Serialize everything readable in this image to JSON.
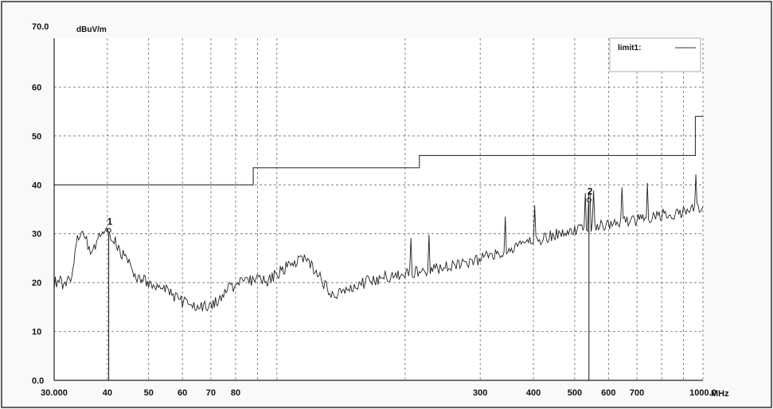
{
  "chart_data": {
    "type": "line",
    "title": "",
    "ylabel": "dBuV/m",
    "xlabel": "MHz",
    "x_scale": "log",
    "xlim": [
      30,
      1000
    ],
    "ylim": [
      0,
      70
    ],
    "y_tick_labels": [
      "0.0",
      "10",
      "20",
      "30",
      "40",
      "50",
      "60",
      "70.0"
    ],
    "y_tick_values": [
      0,
      10,
      20,
      30,
      40,
      50,
      60,
      70
    ],
    "x_tick_labels": [
      "30.000",
      "40",
      "50",
      "60",
      "70",
      "80",
      "300",
      "400",
      "500",
      "600",
      "700",
      "1000.0"
    ],
    "x_tick_values": [
      30,
      40,
      50,
      60,
      70,
      80,
      300,
      400,
      500,
      600,
      700,
      1000
    ],
    "x_grid_values": [
      30,
      40,
      50,
      60,
      70,
      80,
      90,
      100,
      200,
      300,
      400,
      500,
      600,
      700,
      800,
      900,
      1000
    ],
    "y_grid_values": [
      10,
      20,
      30,
      40,
      50,
      60
    ],
    "grid": true,
    "legend": {
      "position": "top-right",
      "entries": [
        "limit1:"
      ]
    },
    "series": [
      {
        "name": "limit1:",
        "color": "#333333",
        "step": true,
        "points": [
          [
            30,
            40
          ],
          [
            88,
            40
          ],
          [
            88,
            43.5
          ],
          [
            216,
            43.5
          ],
          [
            216,
            46
          ],
          [
            960,
            46
          ],
          [
            960,
            54
          ],
          [
            1000,
            54
          ]
        ]
      },
      {
        "color": "#222222",
        "points": [
          [
            30,
            20
          ],
          [
            31,
            20.5
          ],
          [
            32,
            19
          ],
          [
            33,
            22
          ],
          [
            34,
            29
          ],
          [
            35,
            30
          ],
          [
            36,
            28
          ],
          [
            37,
            26
          ],
          [
            38,
            29
          ],
          [
            39,
            31
          ],
          [
            40,
            32
          ],
          [
            41,
            29
          ],
          [
            42,
            28
          ],
          [
            43,
            26
          ],
          [
            45,
            24
          ],
          [
            47,
            21
          ],
          [
            50,
            20
          ],
          [
            53,
            19
          ],
          [
            56,
            18
          ],
          [
            60,
            16
          ],
          [
            63,
            15.5
          ],
          [
            66,
            15
          ],
          [
            70,
            15
          ],
          [
            74,
            17
          ],
          [
            78,
            19
          ],
          [
            82,
            20
          ],
          [
            86,
            20.5
          ],
          [
            90,
            21
          ],
          [
            95,
            20.5
          ],
          [
            100,
            22
          ],
          [
            105,
            23
          ],
          [
            110,
            24
          ],
          [
            116,
            24.5
          ],
          [
            122,
            23
          ],
          [
            128,
            20
          ],
          [
            134,
            18
          ],
          [
            140,
            17.5
          ],
          [
            148,
            19
          ],
          [
            160,
            20
          ],
          [
            175,
            21
          ],
          [
            190,
            21.5
          ],
          [
            205,
            22
          ],
          [
            220,
            22.5
          ],
          [
            240,
            23
          ],
          [
            260,
            23.5
          ],
          [
            280,
            24
          ],
          [
            300,
            25
          ],
          [
            330,
            26
          ],
          [
            360,
            27
          ],
          [
            400,
            28.5
          ],
          [
            450,
            30
          ],
          [
            500,
            31
          ],
          [
            550,
            31.5
          ],
          [
            600,
            32
          ],
          [
            650,
            32.5
          ],
          [
            700,
            33
          ],
          [
            750,
            33.5
          ],
          [
            800,
            34
          ],
          [
            850,
            34
          ],
          [
            900,
            34.5
          ],
          [
            950,
            35
          ],
          [
            1000,
            35.5
          ]
        ]
      }
    ],
    "markers": [
      {
        "label": "1",
        "x": 40.3,
        "y": 31
      },
      {
        "label": "2",
        "x": 540,
        "y": 37.2
      }
    ]
  }
}
